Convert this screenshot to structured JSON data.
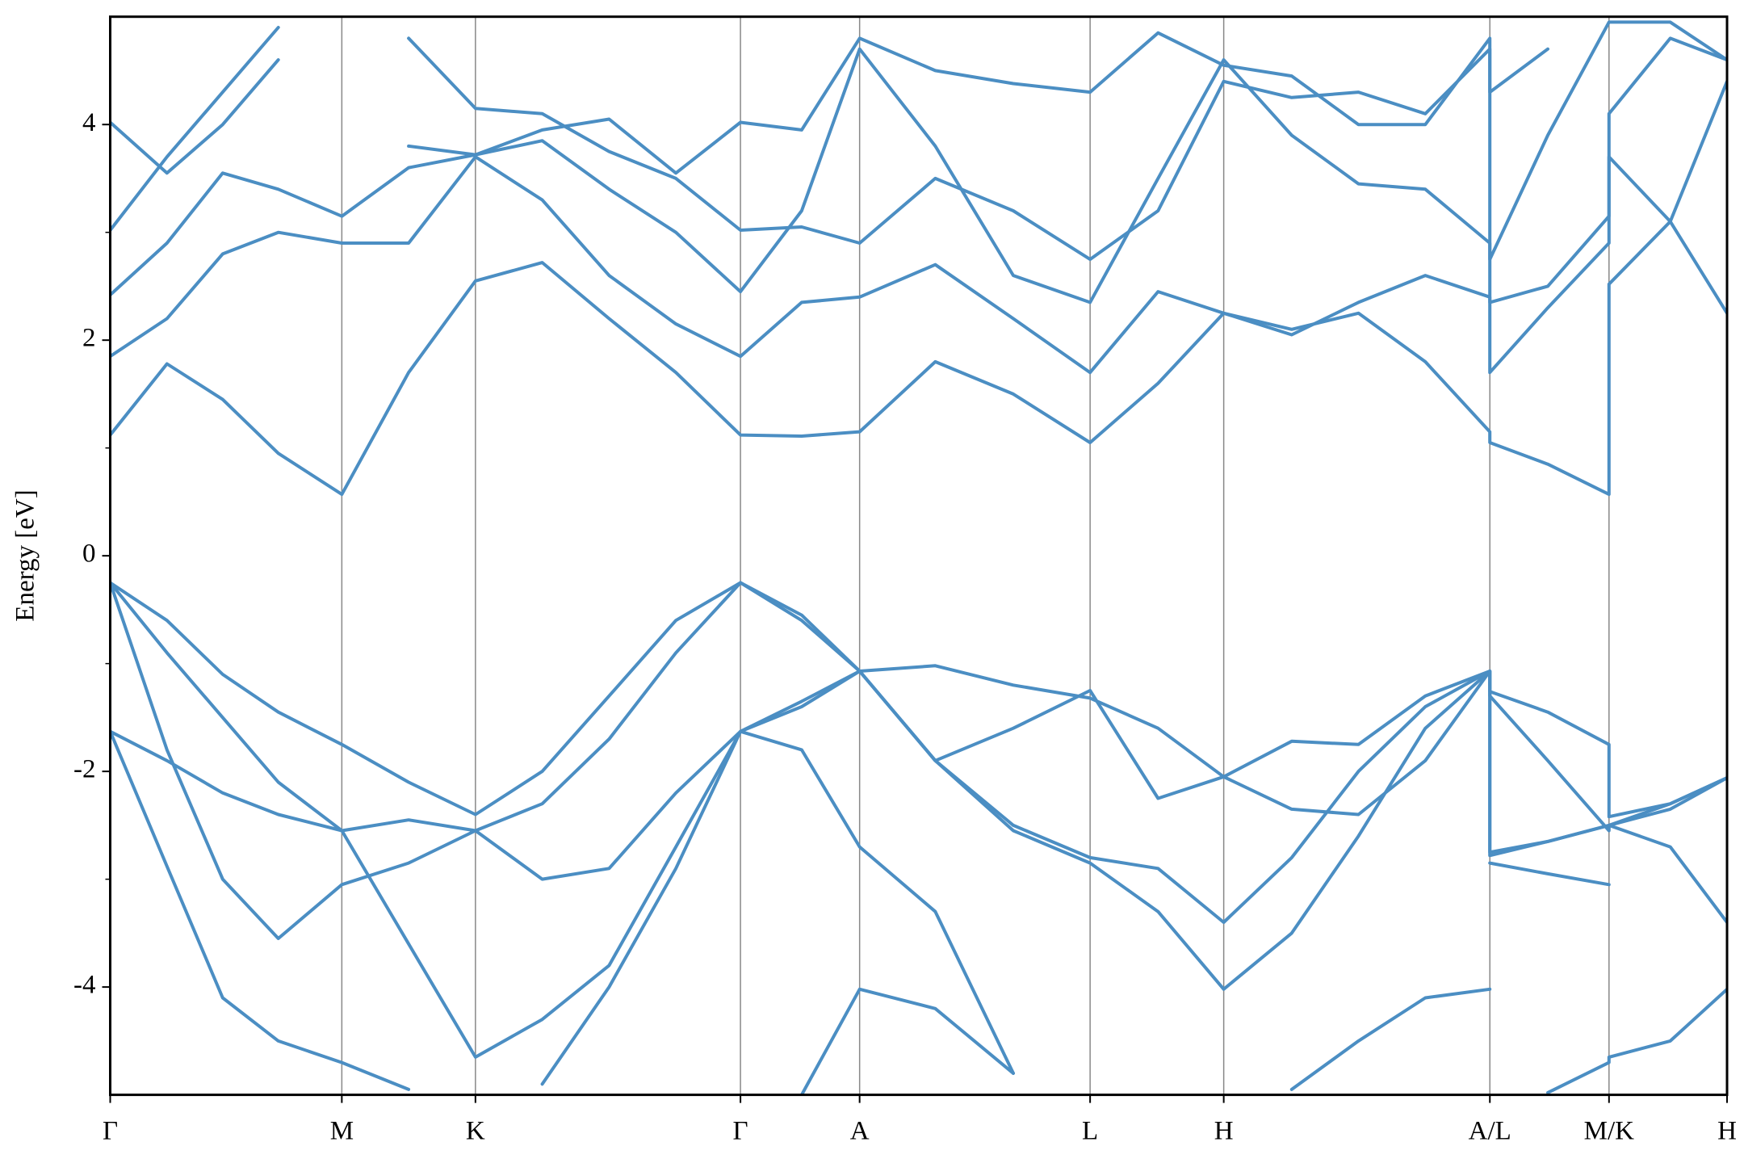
{
  "chart_data": {
    "type": "line",
    "ylabel": "Energy [eV]",
    "xlim": [
      0,
      14.52
    ],
    "ylim": [
      -5,
      5
    ],
    "yticks": [
      -4,
      -2,
      0,
      2,
      4
    ],
    "yminorticks": [
      -3,
      -1,
      1,
      3
    ],
    "xticks": [
      {
        "value": 0,
        "label": "Γ"
      },
      {
        "value": 2.08,
        "label": "M"
      },
      {
        "value": 3.28,
        "label": "K"
      },
      {
        "value": 5.66,
        "label": "Γ"
      },
      {
        "value": 6.73,
        "label": "A"
      },
      {
        "value": 8.8,
        "label": "L"
      },
      {
        "value": 10.0,
        "label": "H"
      },
      {
        "value": 12.39,
        "label": "A/L"
      },
      {
        "value": 13.46,
        "label": "M/K"
      },
      {
        "value": 14.52,
        "label": "H"
      }
    ],
    "xgrid": true,
    "grid_color": "#888888",
    "line_color": "#4b8ec3",
    "x": [
      0,
      0.51,
      1.01,
      1.51,
      2.08,
      2.68,
      3.28,
      3.88,
      4.48,
      5.08,
      5.66,
      6.21,
      6.73,
      7.41,
      8.11,
      8.8,
      9.41,
      10.0,
      10.61,
      11.21,
      11.81,
      12.39,
      12.39,
      12.91,
      13.46,
      13.46,
      14.01,
      14.52
    ],
    "series": [
      {
        "values": [
          -0.25,
          -0.6,
          -1.1,
          -1.45,
          -1.75,
          -2.1,
          -2.4,
          -2.0,
          -1.3,
          -0.6,
          -0.25,
          -0.55,
          -1.07,
          -1.02,
          -1.2,
          -1.32,
          -1.6,
          -2.05,
          -1.72,
          -1.75,
          -1.3,
          -1.07,
          -1.26,
          -1.45,
          -1.75,
          -2.42,
          -2.3,
          -2.06
        ]
      },
      {
        "values": [
          -0.25,
          -0.9,
          -1.5,
          -2.1,
          -2.55,
          -2.45,
          -2.55,
          -2.3,
          -1.7,
          -0.9,
          -0.25,
          -0.6,
          -1.07,
          -1.9,
          -2.5,
          -2.8,
          -2.9,
          -3.4,
          -2.8,
          -2.0,
          -1.4,
          -1.07,
          -1.3,
          -1.9,
          -2.55,
          -2.5,
          -2.3,
          -2.06
        ]
      },
      {
        "values": [
          -0.25,
          -1.8,
          -3.0,
          -3.55,
          -3.05,
          -2.85,
          -2.55,
          -3.0,
          -2.9,
          -2.2,
          -1.63,
          -1.35,
          -1.07,
          -1.9,
          -1.6,
          -1.25,
          -2.25,
          -2.05,
          -2.35,
          -2.4,
          -1.9,
          -1.07,
          -2.75,
          -2.65,
          -2.5,
          -2.5,
          -2.7,
          -3.4
        ]
      },
      {
        "values": [
          -1.63,
          -1.9,
          -2.2,
          -2.4,
          -2.55,
          -3.6,
          -4.65,
          -4.3,
          -3.8,
          -2.7,
          -1.63,
          -1.8,
          -2.7,
          -3.3,
          -4.8,
          null,
          null,
          null,
          null,
          null,
          null,
          null,
          -2.85,
          -2.95,
          -3.05,
          null,
          null,
          null
        ]
      },
      {
        "values": [
          -1.63,
          -2.88,
          -4.1,
          -4.5,
          -4.7,
          -4.95,
          null,
          -4.9,
          -4.0,
          -2.9,
          -1.63,
          -1.4,
          -1.07,
          -1.9,
          -2.55,
          -2.85,
          -3.3,
          -4.02,
          -3.5,
          -2.6,
          -1.6,
          -1.07,
          -2.78,
          -2.65,
          -2.5,
          -2.5,
          -2.35,
          -2.06
        ]
      },
      {
        "values": [
          null,
          null,
          null,
          null,
          null,
          null,
          null,
          null,
          null,
          null,
          null,
          -5.0,
          -4.02,
          -4.2,
          -4.8,
          null,
          null,
          null,
          -4.95,
          -4.5,
          -4.1,
          -4.02,
          null,
          -4.98,
          -4.7,
          -4.65,
          -4.5,
          -4.02
        ]
      },
      {
        "values": [
          1.12,
          1.78,
          1.45,
          0.95,
          0.57,
          1.7,
          2.55,
          2.72,
          2.2,
          1.7,
          1.12,
          1.11,
          1.15,
          1.8,
          1.5,
          1.05,
          1.6,
          2.25,
          2.1,
          2.25,
          1.8,
          1.15,
          1.05,
          0.85,
          0.57,
          2.52,
          3.1,
          4.4
        ]
      },
      {
        "values": [
          1.85,
          2.2,
          2.8,
          3.0,
          2.9,
          2.9,
          3.7,
          3.3,
          2.6,
          2.15,
          1.85,
          2.35,
          2.4,
          2.7,
          2.2,
          1.7,
          2.45,
          2.25,
          2.05,
          2.35,
          2.6,
          2.4,
          1.7,
          2.3,
          2.9,
          3.7,
          3.1,
          2.25
        ]
      },
      {
        "values": [
          2.42,
          2.9,
          3.55,
          3.4,
          3.15,
          3.6,
          3.72,
          3.85,
          3.4,
          3.0,
          2.45,
          3.2,
          4.7,
          3.8,
          2.6,
          2.35,
          3.5,
          4.6,
          3.9,
          3.45,
          3.4,
          2.9,
          2.35,
          2.5,
          3.15,
          4.1,
          4.8,
          4.6
        ]
      },
      {
        "values": [
          3.02,
          3.7,
          4.3,
          4.9,
          null,
          4.8,
          4.15,
          4.1,
          3.75,
          3.5,
          3.02,
          3.05,
          2.9,
          3.5,
          3.2,
          2.75,
          3.2,
          4.4,
          4.25,
          4.3,
          4.1,
          4.7,
          2.75,
          3.9,
          4.95,
          4.95,
          4.95,
          4.6
        ]
      },
      {
        "values": [
          4.02,
          3.55,
          4.0,
          4.6,
          null,
          3.8,
          3.72,
          3.95,
          4.05,
          3.55,
          4.02,
          3.95,
          4.8,
          4.5,
          4.38,
          4.3,
          4.85,
          4.55,
          4.45,
          4.0,
          4.0,
          4.8,
          4.3,
          4.7,
          null,
          null,
          null,
          null
        ]
      }
    ]
  }
}
